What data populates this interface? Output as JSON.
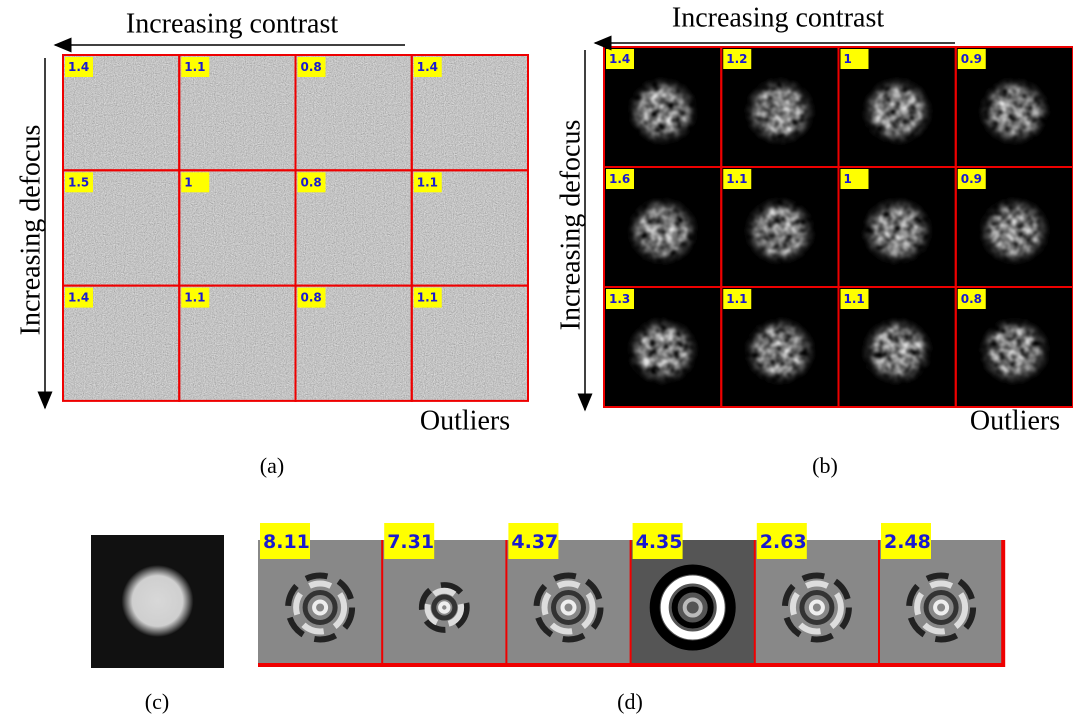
{
  "panels": [
    {
      "caption": "(a)",
      "x_label": "Increasing contrast",
      "y_label": "Increasing defocus",
      "corner_label": "Outliers",
      "grid": [
        [
          "1.4",
          "1.1",
          "0.8",
          "1.4"
        ],
        [
          "1.5",
          "1",
          "0.8",
          "1.1"
        ],
        [
          "1.4",
          "1.1",
          "0.8",
          "1.1"
        ]
      ]
    },
    {
      "caption": "(b)",
      "x_label": "Increasing contrast",
      "y_label": "Increasing defocus",
      "corner_label": "Outliers",
      "grid": [
        [
          "1.4",
          "1.2",
          "1",
          "0.9"
        ],
        [
          "1.6",
          "1.1",
          "1",
          "0.9"
        ],
        [
          "1.3",
          "1.1",
          "1.1",
          "0.8"
        ]
      ]
    }
  ],
  "panel_c": {
    "caption": "(c)"
  },
  "panel_d": {
    "caption": "(d)",
    "labels": [
      "8.11",
      "7.31",
      "4.37",
      "4.35",
      "2.63",
      "2.48"
    ]
  }
}
